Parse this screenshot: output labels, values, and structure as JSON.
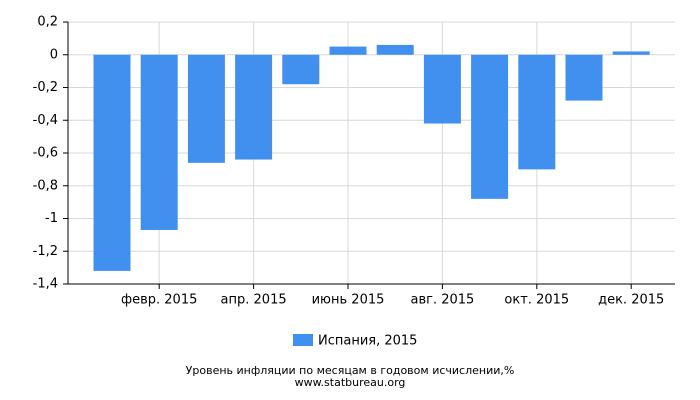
{
  "chart_data": {
    "type": "bar",
    "title": "Уровень инфляции по месяцам в годовом исчислении,%",
    "subtitle": "www.statbureau.org",
    "categories": [
      null,
      "февр. 2015",
      null,
      "апр. 2015",
      null,
      "июнь 2015",
      null,
      "авг. 2015",
      null,
      "окт. 2015",
      null,
      "дек. 2015"
    ],
    "series": [
      {
        "name": "Испания, 2015",
        "color": "#418fef",
        "values": [
          -1.32,
          -1.07,
          -0.66,
          -0.64,
          -0.18,
          0.05,
          0.06,
          -0.42,
          -0.88,
          -0.7,
          -0.28,
          0.02
        ]
      }
    ],
    "ylim": [
      -1.4,
      0.2
    ],
    "yticks": [
      {
        "value": -1.4,
        "label": "-1,4"
      },
      {
        "value": -1.2,
        "label": "-1,2"
      },
      -1,
      {
        "value": -0.8,
        "label": "-0,8"
      },
      {
        "value": -0.6,
        "label": "-0,6"
      },
      {
        "value": -0.4,
        "label": "-0,4"
      },
      {
        "value": -0.2,
        "label": "-0,2"
      },
      0,
      {
        "value": 0.2,
        "label": "0,2"
      }
    ],
    "grid": true
  }
}
